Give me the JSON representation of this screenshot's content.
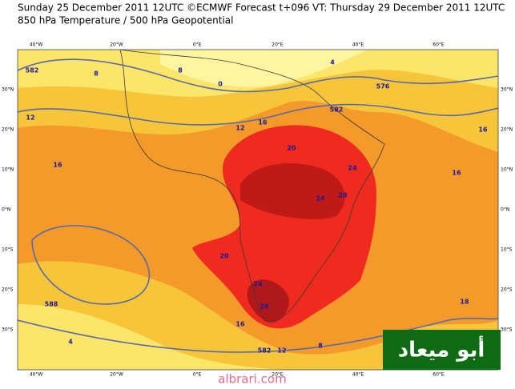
{
  "header": {
    "line1": "Sunday 25 December 2011 12UTC ©ECMWF Forecast t+096 VT: Thursday 29 December 2011 12UTC",
    "line2": "850 hPa Temperature / 500 hPa Geopotential"
  },
  "map": {
    "lon_labels": [
      "40°W",
      "20°W",
      "0°E",
      "20°E",
      "40°E",
      "60°E"
    ],
    "lat_labels": [
      "30°N",
      "20°N",
      "10°N",
      "0°N",
      "10°S",
      "20°S",
      "30°S"
    ],
    "contour_labels": [
      "582",
      "8",
      "8",
      "0",
      "4",
      "576",
      "582",
      "12",
      "12",
      "16",
      "16",
      "20",
      "24",
      "24",
      "28",
      "20",
      "24",
      "28",
      "16",
      "588",
      "582",
      "12",
      "8",
      "16",
      "16",
      "18",
      "4"
    ]
  },
  "logo": "أبو ميعاد",
  "footer": "albrari.com"
}
